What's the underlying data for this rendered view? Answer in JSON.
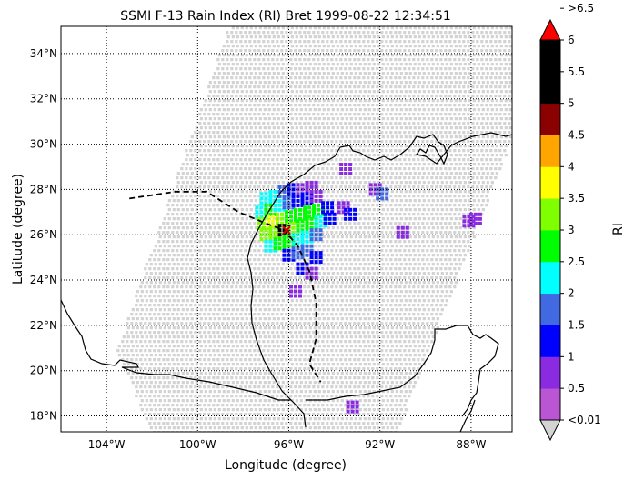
{
  "chart_data": {
    "type": "scatter",
    "title": "SSMI F-13 Rain Index (RI) Bret 1999-08-22 12:34:51",
    "xlabel": "Longitude (degree)",
    "ylabel": "Latitude (degree)",
    "xlim": [
      -106,
      -86.2
    ],
    "ylim": [
      17.3,
      35.2
    ],
    "x_ticks": [
      {
        "value": -104,
        "label": "104°W"
      },
      {
        "value": -100,
        "label": "100°W"
      },
      {
        "value": -96,
        "label": "96°W"
      },
      {
        "value": -92,
        "label": "92°W"
      },
      {
        "value": -88,
        "label": "88°W"
      }
    ],
    "y_ticks": [
      {
        "value": 18,
        "label": "18°N"
      },
      {
        "value": 20,
        "label": "20°N"
      },
      {
        "value": 22,
        "label": "22°N"
      },
      {
        "value": 24,
        "label": "24°N"
      },
      {
        "value": 26,
        "label": "26°N"
      },
      {
        "value": 28,
        "label": "28°N"
      },
      {
        "value": 30,
        "label": "30°N"
      },
      {
        "value": 32,
        "label": "32°N"
      },
      {
        "value": 34,
        "label": "34°N"
      }
    ],
    "grid": "dotted",
    "swath": {
      "color": "#d3d3d3",
      "corners": [
        [
          -98.7,
          35.2
        ],
        [
          -86.2,
          35.2
        ],
        [
          -86.2,
          30.4
        ],
        [
          -91.3,
          17.3
        ],
        [
          -102.1,
          17.3
        ],
        [
          -103.6,
          21.0
        ]
      ]
    },
    "storm_track": [
      [
        -103.0,
        27.6
      ],
      [
        -101.0,
        27.9
      ],
      [
        -99.6,
        27.9
      ],
      [
        -98.2,
        27.0
      ],
      [
        -97.0,
        26.5
      ],
      [
        -96.2,
        26.2
      ],
      [
        -95.6,
        25.5
      ],
      [
        -95.1,
        24.4
      ],
      [
        -94.8,
        23.0
      ],
      [
        -94.8,
        21.4
      ],
      [
        -95.1,
        20.3
      ],
      [
        -94.6,
        19.5
      ]
    ],
    "storm_center": {
      "lon": -96.1,
      "lat": 26.2,
      "color": "#cc0000"
    },
    "colorbar": {
      "label": "RI",
      "levels": [
        "<0.01",
        "0.5",
        "1",
        "1.5",
        "2",
        "2.5",
        "3",
        "3.5",
        "4",
        "4.5",
        "5",
        "5.5",
        "6",
        ">6.5"
      ],
      "colors": [
        "#ba55d3",
        "#8a2be2",
        "#0000ff",
        "#4169e1",
        "#00ffff",
        "#00ff00",
        "#7fff00",
        "#ffff00",
        "#ffa500",
        "#8b0000",
        "#000000",
        "#000000"
      ],
      "under_color": "#d3d3d3",
      "over_color": "#ff0000"
    },
    "rain_pixels": [
      {
        "lon": -97.0,
        "lat": 27.6,
        "ri": 2.0
      },
      {
        "lon": -96.6,
        "lat": 27.7,
        "ri": 2.0
      },
      {
        "lon": -96.2,
        "lat": 27.9,
        "ri": 1.5
      },
      {
        "lon": -95.8,
        "lat": 28.0,
        "ri": 1.0
      },
      {
        "lon": -95.4,
        "lat": 28.0,
        "ri": 0.5
      },
      {
        "lon": -95.0,
        "lat": 28.1,
        "ri": 0.5
      },
      {
        "lon": -97.2,
        "lat": 27.0,
        "ri": 2.0
      },
      {
        "lon": -96.8,
        "lat": 27.1,
        "ri": 2.5
      },
      {
        "lon": -96.4,
        "lat": 27.3,
        "ri": 2.0
      },
      {
        "lon": -96.0,
        "lat": 27.4,
        "ri": 1.5
      },
      {
        "lon": -95.6,
        "lat": 27.5,
        "ri": 1.0
      },
      {
        "lon": -95.2,
        "lat": 27.6,
        "ri": 1.0
      },
      {
        "lon": -94.8,
        "lat": 27.7,
        "ri": 0.5
      },
      {
        "lon": -97.1,
        "lat": 26.5,
        "ri": 3.0
      },
      {
        "lon": -96.7,
        "lat": 26.6,
        "ri": 3.5
      },
      {
        "lon": -96.3,
        "lat": 26.7,
        "ri": 3.0
      },
      {
        "lon": -95.9,
        "lat": 26.8,
        "ri": 2.5
      },
      {
        "lon": -95.5,
        "lat": 26.9,
        "ri": 2.5
      },
      {
        "lon": -95.1,
        "lat": 27.0,
        "ri": 2.5
      },
      {
        "lon": -94.7,
        "lat": 27.1,
        "ri": 2.5
      },
      {
        "lon": -94.3,
        "lat": 27.2,
        "ri": 1.0
      },
      {
        "lon": -97.0,
        "lat": 26.0,
        "ri": 3.0
      },
      {
        "lon": -96.6,
        "lat": 26.1,
        "ri": 3.0
      },
      {
        "lon": -96.2,
        "lat": 26.2,
        "ri": 5.0
      },
      {
        "lon": -95.8,
        "lat": 26.3,
        "ri": 3.0
      },
      {
        "lon": -95.4,
        "lat": 26.4,
        "ri": 2.5
      },
      {
        "lon": -95.0,
        "lat": 26.5,
        "ri": 2.5
      },
      {
        "lon": -94.6,
        "lat": 26.6,
        "ri": 2.0
      },
      {
        "lon": -94.2,
        "lat": 26.7,
        "ri": 1.0
      },
      {
        "lon": -96.8,
        "lat": 25.5,
        "ri": 2.0
      },
      {
        "lon": -96.4,
        "lat": 25.6,
        "ri": 2.5
      },
      {
        "lon": -96.0,
        "lat": 25.7,
        "ri": 2.5
      },
      {
        "lon": -95.6,
        "lat": 25.8,
        "ri": 2.0
      },
      {
        "lon": -95.2,
        "lat": 25.9,
        "ri": 2.0
      },
      {
        "lon": -94.8,
        "lat": 26.0,
        "ri": 1.5
      },
      {
        "lon": -96.0,
        "lat": 25.1,
        "ri": 1.0
      },
      {
        "lon": -95.6,
        "lat": 25.2,
        "ri": 1.5
      },
      {
        "lon": -95.2,
        "lat": 25.3,
        "ri": 1.5
      },
      {
        "lon": -94.8,
        "lat": 25.0,
        "ri": 1.0
      },
      {
        "lon": -95.4,
        "lat": 24.5,
        "ri": 1.0
      },
      {
        "lon": -95.0,
        "lat": 24.3,
        "ri": 0.5
      },
      {
        "lon": -95.7,
        "lat": 23.5,
        "ri": 0.5
      },
      {
        "lon": -92.2,
        "lat": 28.0,
        "ri": 0.5
      },
      {
        "lon": -91.9,
        "lat": 27.8,
        "ri": 1.5
      },
      {
        "lon": -93.6,
        "lat": 27.2,
        "ri": 0.5
      },
      {
        "lon": -93.3,
        "lat": 26.9,
        "ri": 1.0
      },
      {
        "lon": -88.1,
        "lat": 26.6,
        "ri": 0.5
      },
      {
        "lon": -87.8,
        "lat": 26.7,
        "ri": 0.5
      },
      {
        "lon": -91.0,
        "lat": 26.1,
        "ri": 0.5
      },
      {
        "lon": -93.5,
        "lat": 28.9,
        "ri": 0.5
      },
      {
        "lon": -93.2,
        "lat": 18.4,
        "ri": 0.5
      }
    ]
  }
}
